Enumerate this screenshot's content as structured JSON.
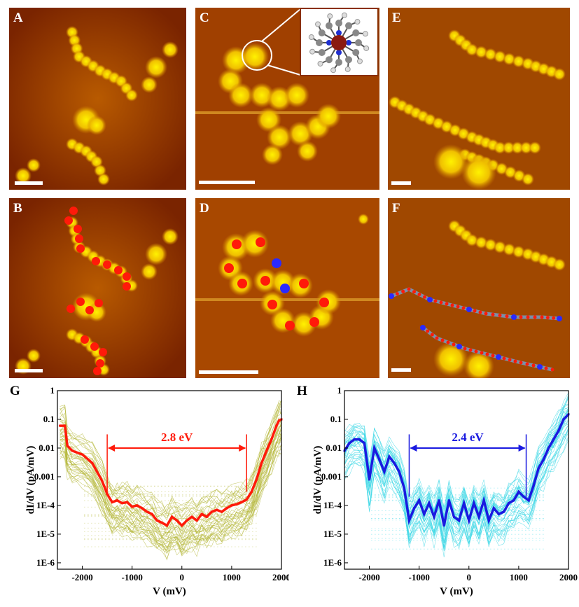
{
  "panels": [
    {
      "id": "A",
      "label": "A"
    },
    {
      "id": "B",
      "label": "B"
    },
    {
      "id": "C",
      "label": "C"
    },
    {
      "id": "D",
      "label": "D"
    },
    {
      "id": "E",
      "label": "E"
    },
    {
      "id": "F",
      "label": "F"
    }
  ],
  "colors": {
    "stm_dark": "#8a2a00",
    "stm_mid": "#c86400",
    "stm_bright": "#ffe000",
    "marker_red": "#ff1a0a",
    "marker_blue": "#2a2aff",
    "chart_g_bg": "#b5b83a",
    "chart_g_main": "#ff1a0a",
    "chart_h_bg": "#3ad7e6",
    "chart_h_main": "#1a1ae0"
  },
  "chart_data": [
    {
      "panel_label": "G",
      "type": "line",
      "xlabel": "V (mV)",
      "ylabel": "dI/dV (pA/mV)",
      "xlim": [
        -2500,
        2000
      ],
      "ylim": [
        6e-07,
        1
      ],
      "yscale": "log",
      "xticks": [
        "-2000",
        "-1000",
        "0",
        "1000",
        "2000"
      ],
      "yticks": [
        "1",
        "0.1",
        "0.01",
        "0.001",
        "1E-4",
        "1E-5",
        "1E-6"
      ],
      "annotation": {
        "text": "2.8 eV",
        "x_start": -1500,
        "x_end": 1300
      },
      "series": [
        {
          "values_x": [
            -2450,
            -2350,
            -2300,
            -2200,
            -2000,
            -1800,
            -1600,
            -1500,
            -1400,
            -1300,
            -1200,
            -1100,
            -1000,
            -900,
            -800,
            -700,
            -600,
            -500,
            -400,
            -300,
            -200,
            -100,
            0,
            100,
            200,
            300,
            400,
            500,
            600,
            700,
            800,
            900,
            1000,
            1100,
            1200,
            1300,
            1400,
            1500,
            1600,
            1700,
            1800,
            1900,
            1950,
            2000
          ],
          "values_y": [
            0.06,
            0.06,
            0.012,
            0.008,
            0.006,
            0.003,
            0.0007,
            0.00025,
            0.00013,
            0.00015,
            0.00012,
            0.00013,
            9e-05,
            0.0001,
            8e-05,
            6e-05,
            5e-05,
            3e-05,
            2.5e-05,
            2e-05,
            4e-05,
            3e-05,
            2e-05,
            3e-05,
            4e-05,
            3e-05,
            5e-05,
            4e-05,
            6e-05,
            7e-05,
            6e-05,
            8e-05,
            0.0001,
            0.00011,
            0.00013,
            0.00016,
            0.0003,
            0.0008,
            0.003,
            0.008,
            0.02,
            0.06,
            0.09,
            0.1
          ]
        }
      ]
    },
    {
      "panel_label": "H",
      "type": "line",
      "xlabel": "V (mV)",
      "ylabel": "dI/dV (pA/mV)",
      "xlim": [
        -2500,
        2000
      ],
      "ylim": [
        6e-07,
        1
      ],
      "yscale": "log",
      "xticks": [
        "-2000",
        "-1000",
        "0",
        "1000",
        "2000"
      ],
      "yticks": [
        "1",
        "0.1",
        "0.01",
        "0.001",
        "1E-4",
        "1E-5",
        "1E-6"
      ],
      "annotation": {
        "text": "2.4 eV",
        "x_start": -1200,
        "x_end": 1150
      },
      "series": [
        {
          "values_x": [
            -2500,
            -2400,
            -2300,
            -2200,
            -2100,
            -2000,
            -1900,
            -1800,
            -1700,
            -1600,
            -1500,
            -1400,
            -1300,
            -1200,
            -1100,
            -1000,
            -900,
            -800,
            -700,
            -600,
            -500,
            -400,
            -300,
            -200,
            -100,
            0,
            100,
            200,
            300,
            400,
            500,
            600,
            700,
            800,
            900,
            1000,
            1100,
            1200,
            1300,
            1400,
            1500,
            1600,
            1700,
            1800,
            1900,
            2000
          ],
          "values_y": [
            0.008,
            0.015,
            0.02,
            0.02,
            0.015,
            0.0008,
            0.01,
            0.004,
            0.0015,
            0.005,
            0.003,
            0.0015,
            0.0004,
            3e-05,
            8e-05,
            0.00015,
            5e-05,
            0.00012,
            4e-05,
            0.00015,
            2e-05,
            0.00015,
            4e-05,
            3e-05,
            0.00012,
            3e-05,
            0.00012,
            4e-05,
            0.00015,
            3e-05,
            8e-05,
            5e-05,
            6e-05,
            0.00012,
            0.00015,
            0.0003,
            0.0002,
            0.00015,
            0.0005,
            0.002,
            0.004,
            0.01,
            0.02,
            0.04,
            0.1,
            0.15
          ]
        }
      ]
    }
  ]
}
